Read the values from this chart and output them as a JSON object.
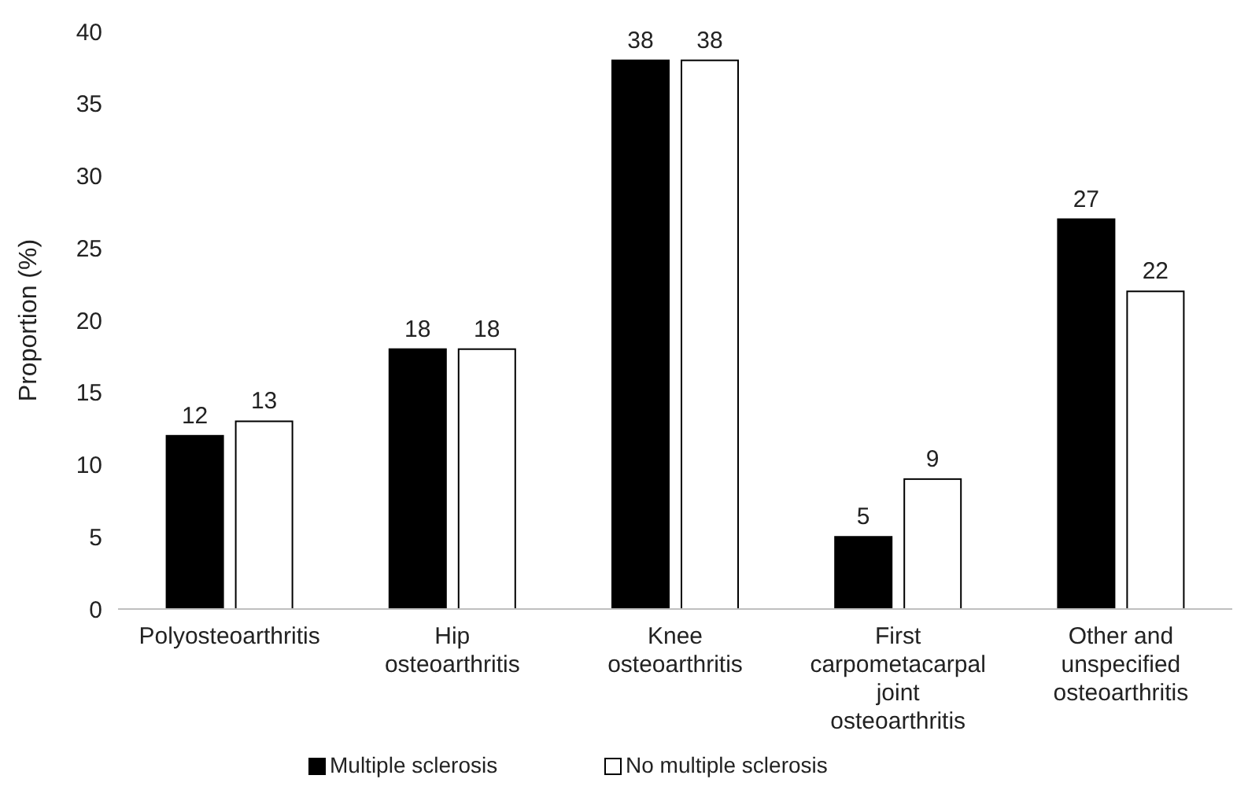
{
  "chart_data": {
    "type": "bar",
    "ylabel": "Proportion (%)",
    "categories": [
      "Polyosteoarthritis",
      "Hip osteoarthritis",
      "Knee osteoarthritis",
      "First carpometacarpal joint osteoarthritis",
      "Other and unspecified osteoarthritis"
    ],
    "series": [
      {
        "name": "Multiple sclerosis",
        "color": "#000000",
        "values": [
          12,
          18,
          38,
          5,
          27
        ]
      },
      {
        "name": "No multiple sclerosis",
        "color": "#ffffff",
        "values": [
          13,
          18,
          38,
          9,
          22
        ]
      }
    ],
    "ylim": [
      0,
      40
    ],
    "yticks": [
      0,
      5,
      10,
      15,
      20,
      25,
      30,
      35,
      40
    ],
    "data_labels": true,
    "legend": "bottom",
    "grid": false
  }
}
